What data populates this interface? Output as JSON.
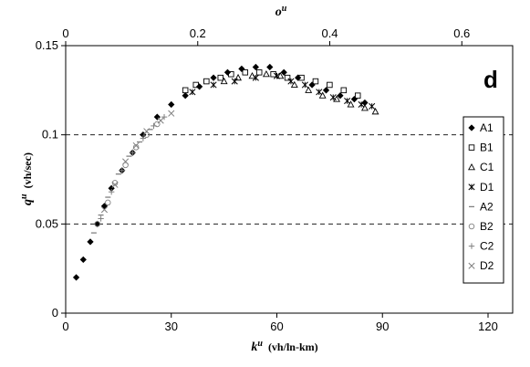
{
  "chart_data": {
    "type": "scatter",
    "panel_label": "d",
    "xlabel_main": "k",
    "xlabel_sup": "u",
    "xlabel_units": "(vh/ln-km)",
    "ylabel_main": "q",
    "ylabel_sup": "u",
    "ylabel_units": "(vh/sec)",
    "x2label_main": "o",
    "x2label_sup": "u",
    "xlim": [
      0,
      127
    ],
    "ylim": [
      0,
      0.15
    ],
    "x2lim": [
      0,
      0.677
    ],
    "xticks": [
      "0",
      "30",
      "60",
      "90",
      "120"
    ],
    "yticks": [
      "0",
      "0.05",
      "0.1",
      "0.15"
    ],
    "x2ticks": [
      "0",
      "0.2",
      "0.4",
      "0.6"
    ],
    "grid_y": [
      0.05,
      0.1
    ],
    "legend_position": "right",
    "series": [
      {
        "name": "A1",
        "marker": "diamond-filled",
        "color": "#000000",
        "points": [
          [
            3,
            0.02
          ],
          [
            5,
            0.03
          ],
          [
            7,
            0.04
          ],
          [
            9,
            0.05
          ],
          [
            11,
            0.06
          ],
          [
            13,
            0.07
          ],
          [
            16,
            0.08
          ],
          [
            19,
            0.09
          ],
          [
            22,
            0.1
          ],
          [
            26,
            0.11
          ],
          [
            30,
            0.117
          ],
          [
            34,
            0.122
          ],
          [
            38,
            0.127
          ],
          [
            42,
            0.132
          ],
          [
            46,
            0.135
          ],
          [
            50,
            0.137
          ],
          [
            54,
            0.138
          ],
          [
            58,
            0.138
          ],
          [
            62,
            0.135
          ],
          [
            66,
            0.132
          ],
          [
            70,
            0.128
          ],
          [
            74,
            0.125
          ],
          [
            78,
            0.122
          ],
          [
            82,
            0.12
          ],
          [
            85,
            0.118
          ]
        ]
      },
      {
        "name": "B1",
        "marker": "square-open",
        "color": "#000000",
        "points": [
          [
            34,
            0.125
          ],
          [
            37,
            0.128
          ],
          [
            40,
            0.13
          ],
          [
            44,
            0.132
          ],
          [
            47,
            0.134
          ],
          [
            51,
            0.135
          ],
          [
            55,
            0.135
          ],
          [
            59,
            0.134
          ],
          [
            63,
            0.132
          ],
          [
            67,
            0.132
          ],
          [
            71,
            0.13
          ],
          [
            75,
            0.128
          ],
          [
            79,
            0.125
          ],
          [
            83,
            0.122
          ]
        ]
      },
      {
        "name": "C1",
        "marker": "triangle-open",
        "color": "#000000",
        "points": [
          [
            45,
            0.13
          ],
          [
            49,
            0.132
          ],
          [
            53,
            0.133
          ],
          [
            57,
            0.134
          ],
          [
            61,
            0.133
          ],
          [
            65,
            0.128
          ],
          [
            69,
            0.125
          ],
          [
            73,
            0.122
          ],
          [
            77,
            0.12
          ],
          [
            81,
            0.117
          ],
          [
            85,
            0.115
          ],
          [
            88,
            0.113
          ]
        ]
      },
      {
        "name": "D1",
        "marker": "asterisk",
        "color": "#000000",
        "points": [
          [
            36,
            0.124
          ],
          [
            42,
            0.128
          ],
          [
            48,
            0.13
          ],
          [
            54,
            0.132
          ],
          [
            60,
            0.133
          ],
          [
            64,
            0.13
          ],
          [
            68,
            0.128
          ],
          [
            72,
            0.124
          ],
          [
            76,
            0.121
          ],
          [
            80,
            0.119
          ],
          [
            84,
            0.117
          ],
          [
            87,
            0.116
          ]
        ]
      },
      {
        "name": "A2",
        "marker": "dash",
        "color": "#808080",
        "points": [
          [
            8,
            0.045
          ],
          [
            10,
            0.055
          ],
          [
            12,
            0.065
          ],
          [
            15,
            0.078
          ],
          [
            18,
            0.088
          ],
          [
            21,
            0.096
          ],
          [
            24,
            0.103
          ]
        ]
      },
      {
        "name": "B2",
        "marker": "circle-open",
        "color": "#808080",
        "points": [
          [
            9,
            0.05
          ],
          [
            12,
            0.062
          ],
          [
            14,
            0.073
          ],
          [
            17,
            0.083
          ],
          [
            20,
            0.093
          ],
          [
            23,
            0.1
          ],
          [
            26,
            0.106
          ]
        ]
      },
      {
        "name": "C2",
        "marker": "plus",
        "color": "#808080",
        "points": [
          [
            10,
            0.053
          ],
          [
            13,
            0.068
          ],
          [
            16,
            0.08
          ],
          [
            19,
            0.09
          ],
          [
            22,
            0.098
          ],
          [
            25,
            0.105
          ],
          [
            28,
            0.11
          ]
        ]
      },
      {
        "name": "D2",
        "marker": "cross",
        "color": "#808080",
        "points": [
          [
            11,
            0.058
          ],
          [
            14,
            0.072
          ],
          [
            17,
            0.085
          ],
          [
            20,
            0.094
          ],
          [
            23,
            0.102
          ],
          [
            27,
            0.108
          ],
          [
            30,
            0.112
          ]
        ]
      }
    ]
  }
}
